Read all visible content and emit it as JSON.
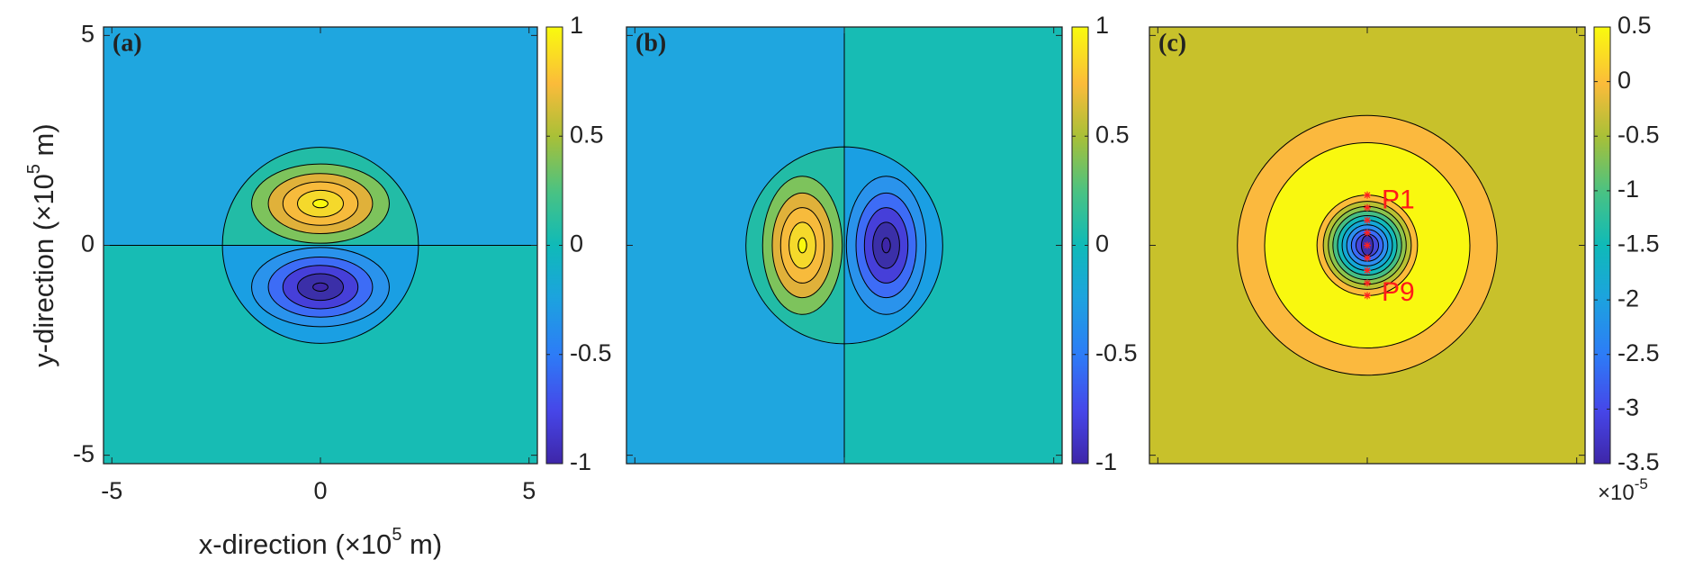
{
  "chart_data": [
    {
      "type": "contour",
      "panel_label": "(a)",
      "xlabel": {
        "prefix": "x-direction (×10",
        "sup": "5",
        "suffix": " m)"
      },
      "ylabel": {
        "prefix": "y-direction (×10",
        "sup": "5",
        "suffix": " m)"
      },
      "xlim": [
        -5.2,
        5.2
      ],
      "ylim": [
        -5.2,
        5.2
      ],
      "xticks": [
        -5,
        0,
        5
      ],
      "yticks": [
        -5,
        0,
        5
      ],
      "tick_labels": true,
      "clim": [
        -1,
        1
      ],
      "cticks": [
        -1,
        -0.5,
        0,
        0.5,
        1
      ]
    },
    {
      "type": "contour",
      "panel_label": "(b)",
      "xlim": [
        -5.2,
        5.2
      ],
      "ylim": [
        -5.2,
        5.2
      ],
      "xticks": [
        -5,
        0,
        5
      ],
      "yticks": [
        -5,
        0,
        5
      ],
      "tick_labels": false,
      "clim": [
        -1,
        1
      ],
      "cticks": [
        -1,
        -0.5,
        0,
        0.5,
        1
      ]
    },
    {
      "type": "contour",
      "panel_label": "(c)",
      "xlim": [
        -5.2,
        5.2
      ],
      "ylim": [
        -5.2,
        5.2
      ],
      "xticks": [
        -5,
        0,
        5
      ],
      "yticks": [
        -5,
        0,
        5
      ],
      "tick_labels": false,
      "clim": [
        -3.5,
        0.5
      ],
      "cticks": [
        -3.5,
        -3,
        -2.5,
        -2,
        -1.5,
        -1,
        -0.5,
        0,
        0.5
      ],
      "colorbar_multiplier": "×10",
      "colorbar_exponent": "-5",
      "annotations": [
        "P1",
        "P9"
      ]
    }
  ]
}
